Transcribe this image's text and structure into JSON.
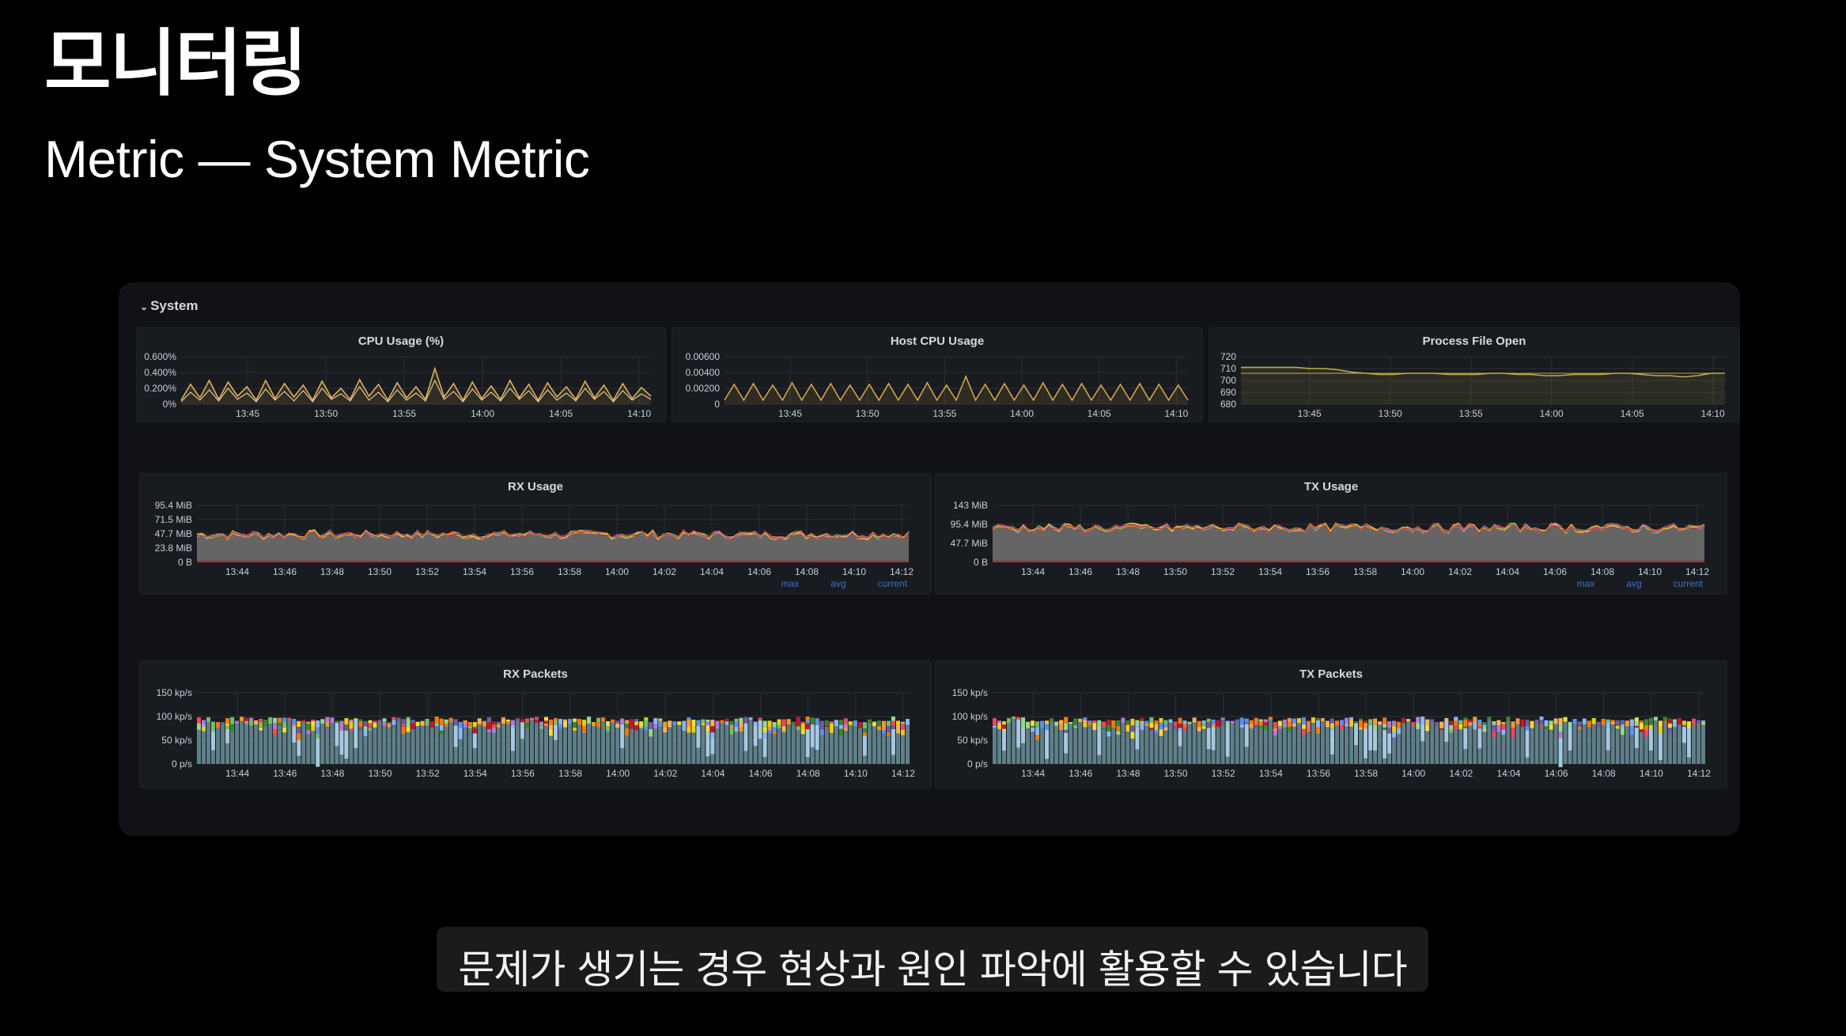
{
  "slide": {
    "title": "모니터링",
    "subtitle": "Metric — System Metric",
    "caption": "문제가 생기는 경우 현상과 원인 파악에 활용할 수 있습니다"
  },
  "dashboard": {
    "row_title": "System",
    "row_icon": "chevron-down-icon",
    "legend": [
      "max",
      "avg",
      "current"
    ]
  },
  "colors": {
    "background": "#000000",
    "panel": "#181b1f",
    "grid": "#2c3035",
    "cpu_series": "#e0b05b",
    "host_cpu_series": "#d4a54a",
    "file_open_series": "#b8b34a",
    "packets_bar": "#5f7f89",
    "legend_link": "#3d71d9"
  },
  "chart_data": [
    {
      "id": "cpu-usage",
      "type": "line",
      "title": "CPU Usage (%)",
      "y_ticks": [
        "0.600%",
        "0.400%",
        "0.200%",
        "0%"
      ],
      "x_ticks": [
        "13:45",
        "13:50",
        "13:55",
        "14:00",
        "14:05",
        "14:10"
      ],
      "ylim": [
        0,
        0.6
      ],
      "series": [
        {
          "values": [
            0.05,
            0.25,
            0.08,
            0.3,
            0.06,
            0.28,
            0.1,
            0.22,
            0.05,
            0.3,
            0.07,
            0.26,
            0.09,
            0.24,
            0.05,
            0.29,
            0.08,
            0.2,
            0.06,
            0.31,
            0.1,
            0.25,
            0.05,
            0.27,
            0.08,
            0.22,
            0.06,
            0.45,
            0.09,
            0.26,
            0.05,
            0.28,
            0.07,
            0.23,
            0.06,
            0.3,
            0.08,
            0.25,
            0.05,
            0.27,
            0.09,
            0.22,
            0.06,
            0.29,
            0.08,
            0.24,
            0.05,
            0.26,
            0.07,
            0.21,
            0.1
          ]
        },
        {
          "values": [
            0.03,
            0.15,
            0.05,
            0.18,
            0.04,
            0.2,
            0.06,
            0.14,
            0.03,
            0.19,
            0.05,
            0.16,
            0.04,
            0.17,
            0.03,
            0.2,
            0.06,
            0.13,
            0.04,
            0.22,
            0.05,
            0.15,
            0.03,
            0.18,
            0.05,
            0.14,
            0.04,
            0.3,
            0.06,
            0.16,
            0.03,
            0.19,
            0.05,
            0.15,
            0.04,
            0.2,
            0.06,
            0.17,
            0.03,
            0.18,
            0.05,
            0.14,
            0.04,
            0.2,
            0.06,
            0.16,
            0.03,
            0.17,
            0.05,
            0.13,
            0.06
          ]
        }
      ]
    },
    {
      "id": "host-cpu-usage",
      "type": "line",
      "title": "Host CPU Usage",
      "y_ticks": [
        "0.00600",
        "0.00400",
        "0.00200",
        "0"
      ],
      "x_ticks": [
        "13:45",
        "13:50",
        "13:55",
        "14:00",
        "14:05",
        "14:10"
      ],
      "ylim": [
        0,
        0.006
      ],
      "series": [
        {
          "values": [
            0.0005,
            0.0025,
            0.0005,
            0.0026,
            0.0005,
            0.0024,
            0.0005,
            0.0027,
            0.0005,
            0.0025,
            0.0005,
            0.0026,
            0.0005,
            0.0024,
            0.0005,
            0.0025,
            0.0005,
            0.0026,
            0.0005,
            0.0025,
            0.0005,
            0.0027,
            0.0005,
            0.0024,
            0.0005,
            0.0035,
            0.0005,
            0.0025,
            0.0005,
            0.0026,
            0.0005,
            0.0024,
            0.0005,
            0.0027,
            0.0005,
            0.0025,
            0.0005,
            0.0026,
            0.0005,
            0.0024,
            0.0005,
            0.0025,
            0.0005,
            0.0026,
            0.0005,
            0.0025,
            0.0005,
            0.0024,
            0.0005
          ]
        }
      ]
    },
    {
      "id": "process-file-open",
      "type": "line",
      "title": "Process File Open",
      "y_ticks": [
        "720",
        "710",
        "700",
        "690",
        "680"
      ],
      "x_ticks": [
        "13:45",
        "13:50",
        "13:55",
        "14:00",
        "14:05",
        "14:10"
      ],
      "ylim": [
        680,
        720
      ],
      "series": [
        {
          "values": [
            711,
            711,
            711,
            711,
            711,
            710,
            710,
            709,
            707,
            706,
            705,
            705,
            706,
            706,
            706,
            705,
            705,
            705,
            706,
            706,
            705,
            705,
            704,
            704,
            705,
            705,
            705,
            706,
            706,
            705,
            704,
            704,
            703,
            704,
            706,
            706
          ]
        },
        {
          "values": [
            706,
            706,
            706,
            706,
            706,
            706,
            706,
            706,
            706,
            706,
            706,
            706,
            706,
            706,
            706,
            706,
            706,
            706,
            706,
            706,
            706,
            706,
            706,
            706,
            706,
            706,
            706,
            706,
            706,
            706,
            706,
            706,
            706,
            706,
            706,
            706
          ]
        }
      ]
    },
    {
      "id": "rx-usage",
      "type": "area",
      "title": "RX Usage",
      "y_ticks": [
        "95.4 MiB",
        "71.5 MiB",
        "47.7 MiB",
        "23.8 MiB",
        "0 B"
      ],
      "x_ticks": [
        "13:44",
        "13:46",
        "13:48",
        "13:50",
        "13:52",
        "13:54",
        "13:56",
        "13:58",
        "14:00",
        "14:02",
        "14:04",
        "14:06",
        "14:08",
        "14:10",
        "14:12"
      ],
      "ylim": [
        0,
        95.4
      ],
      "unit": "MiB",
      "stack_total_range": [
        36,
        55
      ]
    },
    {
      "id": "tx-usage",
      "type": "area",
      "title": "TX Usage",
      "y_ticks": [
        "143 MiB",
        "95.4 MiB",
        "47.7 MiB",
        "0 B"
      ],
      "x_ticks": [
        "13:44",
        "13:46",
        "13:48",
        "13:50",
        "13:52",
        "13:54",
        "13:56",
        "13:58",
        "14:00",
        "14:02",
        "14:04",
        "14:06",
        "14:08",
        "14:10",
        "14:12"
      ],
      "ylim": [
        0,
        143
      ],
      "unit": "MiB",
      "stack_total_range": [
        70,
        100
      ]
    },
    {
      "id": "rx-packets",
      "type": "bar",
      "title": "RX Packets",
      "y_ticks": [
        "150 kp/s",
        "100 kp/s",
        "50 kp/s",
        "0 p/s"
      ],
      "x_ticks": [
        "13:44",
        "13:46",
        "13:48",
        "13:50",
        "13:52",
        "13:54",
        "13:56",
        "13:58",
        "14:00",
        "14:02",
        "14:04",
        "14:06",
        "14:08",
        "14:10",
        "14:12"
      ],
      "ylim": [
        0,
        150
      ],
      "unit": "kp/s",
      "stack_total_range": [
        88,
        100
      ]
    },
    {
      "id": "tx-packets",
      "type": "bar",
      "title": "TX Packets",
      "y_ticks": [
        "150 kp/s",
        "100 kp/s",
        "50 kp/s",
        "0 p/s"
      ],
      "x_ticks": [
        "13:44",
        "13:46",
        "13:48",
        "13:50",
        "13:52",
        "13:54",
        "13:56",
        "13:58",
        "14:00",
        "14:02",
        "14:04",
        "14:06",
        "14:08",
        "14:10",
        "14:12"
      ],
      "ylim": [
        0,
        150
      ],
      "unit": "kp/s",
      "stack_total_range": [
        88,
        100
      ]
    }
  ]
}
